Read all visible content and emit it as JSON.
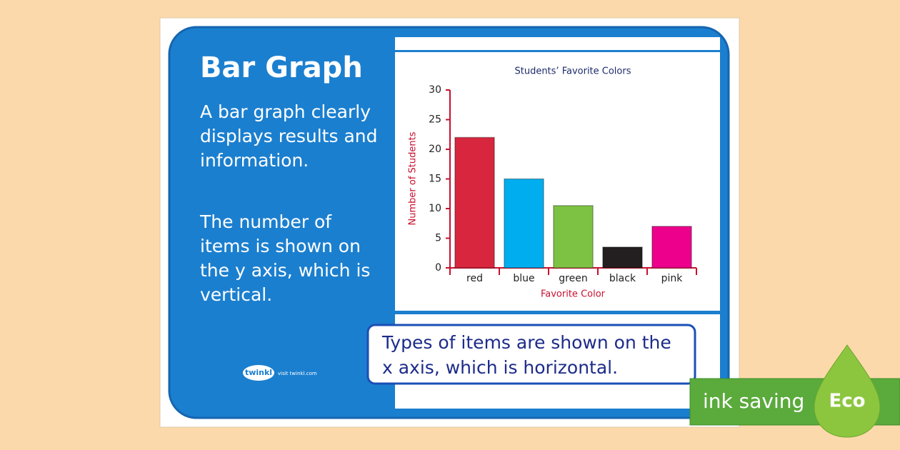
{
  "poster": {
    "title": "Bar Graph",
    "paragraph_1": [
      "A bar graph clearly",
      "displays results and",
      "information."
    ],
    "paragraph_2": [
      "The number of",
      "items is shown on",
      "the y axis, which is",
      "vertical."
    ],
    "callout": [
      "Types of items are shown on the",
      "x axis, which is horizontal."
    ],
    "logo": "twinkl",
    "logo_link": "visit twinkl.com",
    "badge_text": "ink saving",
    "badge_label": "Eco"
  },
  "chart_data": {
    "type": "bar",
    "title": "Students’ Favorite Colors",
    "x_label": "Favorite Color",
    "y_label": "Number of Students",
    "categories": [
      "red",
      "blue",
      "green",
      "black",
      "pink"
    ],
    "values": [
      22,
      15,
      10.5,
      3.5,
      7
    ],
    "colors": [
      "#d7263d",
      "#00aeef",
      "#7dc242",
      "#231f20",
      "#ec008c"
    ],
    "ylim": [
      0,
      30
    ],
    "yticks": [
      0,
      5,
      10,
      15,
      20,
      25,
      30
    ],
    "grid": false
  }
}
